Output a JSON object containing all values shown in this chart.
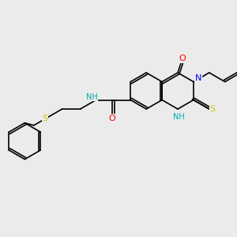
{
  "bg_color": "#ebebeb",
  "bond_color": "#000000",
  "atom_colors": {
    "N": "#0000ff",
    "O": "#ff0000",
    "S": "#cccc00",
    "NH": "#00aaaa",
    "H": "#00aaaa"
  },
  "font_size": 7,
  "lw": 1.2
}
